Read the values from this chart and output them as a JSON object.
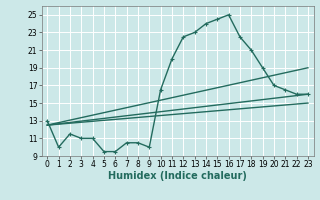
{
  "xlabel": "Humidex (Indice chaleur)",
  "xlim": [
    -0.5,
    23.5
  ],
  "ylim": [
    9,
    26
  ],
  "yticks": [
    9,
    11,
    13,
    15,
    17,
    19,
    21,
    23,
    25
  ],
  "xticks": [
    0,
    1,
    2,
    3,
    4,
    5,
    6,
    7,
    8,
    9,
    10,
    11,
    12,
    13,
    14,
    15,
    16,
    17,
    18,
    19,
    20,
    21,
    22,
    23
  ],
  "bg_color": "#cce8e8",
  "grid_color": "#ffffff",
  "line_color": "#236b5e",
  "curve1_x": [
    0,
    1,
    2,
    3,
    4,
    5,
    6,
    7,
    8,
    9,
    10,
    11,
    12,
    13,
    14,
    15,
    16,
    17,
    18,
    19,
    20,
    21,
    22,
    23
  ],
  "curve1_y": [
    13.0,
    10.0,
    11.5,
    11.0,
    11.0,
    9.5,
    9.5,
    10.5,
    10.5,
    10.0,
    16.5,
    20.0,
    22.5,
    23.0,
    24.0,
    24.5,
    25.0,
    22.5,
    21.0,
    19.0,
    17.0,
    16.5,
    16.0,
    16.0
  ],
  "line2_x": [
    0,
    23
  ],
  "line2_y": [
    12.5,
    19.0
  ],
  "line3_x": [
    0,
    23
  ],
  "line3_y": [
    12.5,
    16.0
  ],
  "line4_x": [
    0,
    23
  ],
  "line4_y": [
    12.5,
    15.0
  ],
  "marker_size": 3.5,
  "line_width": 1.0,
  "tick_fontsize": 5.5,
  "xlabel_fontsize": 7.0
}
